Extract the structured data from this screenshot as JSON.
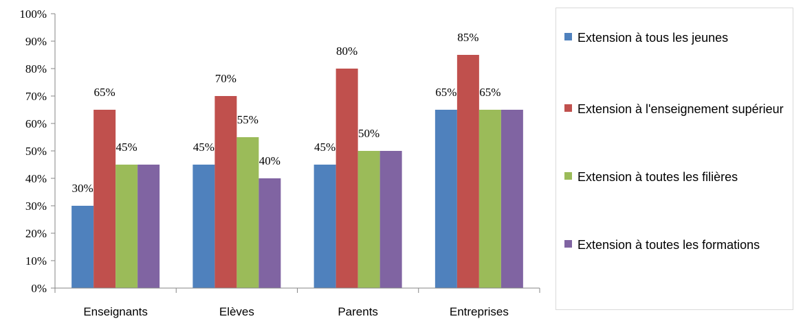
{
  "chart_data": {
    "type": "bar",
    "categories": [
      "Enseignants",
      "Elèves",
      "Parents",
      "Entreprises"
    ],
    "series": [
      {
        "name": "Extension à tous les jeunes",
        "color": "#4F81BD",
        "values": [
          30,
          45,
          45,
          65
        ],
        "labels": [
          "30%",
          "45%",
          "45%",
          "65%"
        ]
      },
      {
        "name": "Extension à l'enseignement supérieur",
        "color": "#C0504D",
        "values": [
          65,
          70,
          80,
          85
        ],
        "labels": [
          "65%",
          "70%",
          "80%",
          "85%"
        ]
      },
      {
        "name": "Extension à toutes les filières",
        "color": "#9BBB59",
        "values": [
          45,
          55,
          50,
          65
        ],
        "labels": [
          "45%",
          "55%",
          "50%",
          "65%"
        ]
      },
      {
        "name": "Extension à toutes les formations",
        "color": "#8064A2",
        "values": [
          45,
          40,
          50,
          65
        ],
        "labels": [
          "",
          "40%",
          "",
          ""
        ]
      }
    ],
    "ylim": [
      0,
      100
    ],
    "yticks": [
      "0%",
      "10%",
      "20%",
      "30%",
      "40%",
      "50%",
      "60%",
      "70%",
      "80%",
      "90%",
      "100%"
    ],
    "grid": false,
    "legend": "right"
  }
}
